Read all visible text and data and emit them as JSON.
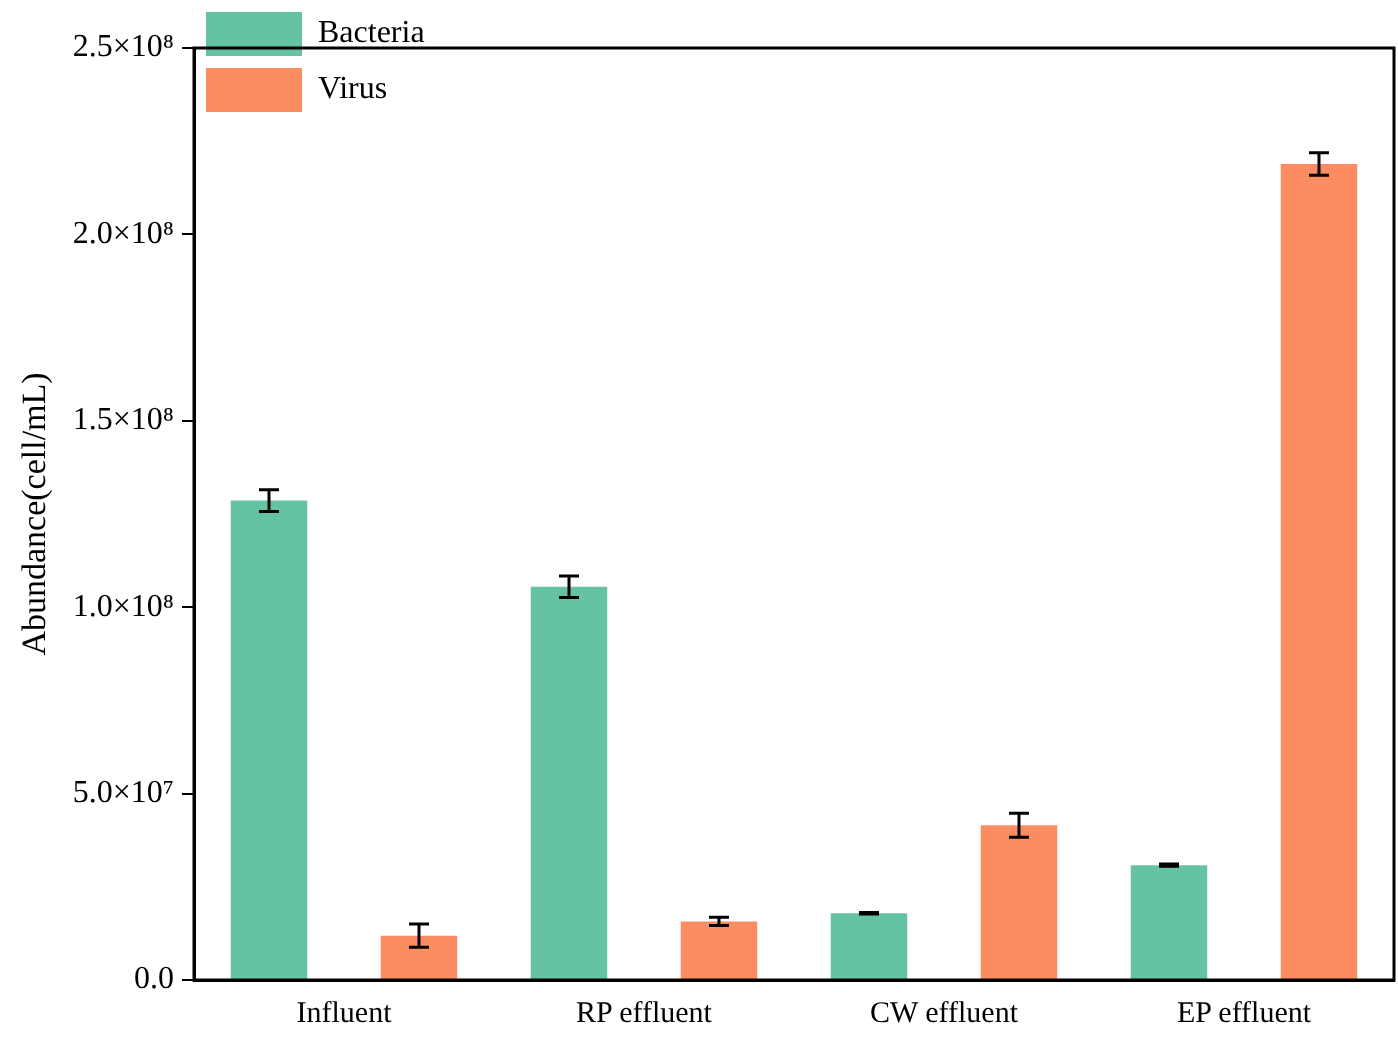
{
  "chart_data": {
    "type": "bar",
    "ylabel": "Abundance(cell/mL)",
    "categories": [
      "Influent",
      "RP effluent",
      "CW effluent",
      "EP effluent"
    ],
    "series": [
      {
        "name": "Bacteria",
        "color": "#66c2a5",
        "values": [
          128600000,
          105500000,
          17900000,
          30800000
        ],
        "errors": [
          2900000,
          2900000,
          200000,
          300000
        ]
      },
      {
        "name": "Virus",
        "color": "#fc8d62",
        "values": [
          11900000,
          15700000,
          41500000,
          218900000
        ],
        "errors": [
          3100000,
          1100000,
          3200000,
          3000000
        ]
      }
    ],
    "ylim": [
      0,
      250000000
    ],
    "yticks": [
      {
        "value": 0,
        "label": "0.0"
      },
      {
        "value": 50000000,
        "label": "5.0×10⁷"
      },
      {
        "value": 100000000,
        "label": "1.0×10⁸"
      },
      {
        "value": 150000000,
        "label": "1.5×10⁸"
      },
      {
        "value": 200000000,
        "label": "2.0×10⁸"
      },
      {
        "value": 250000000,
        "label": "2.5×10⁸"
      }
    ],
    "grid": false,
    "legend": "top left"
  }
}
